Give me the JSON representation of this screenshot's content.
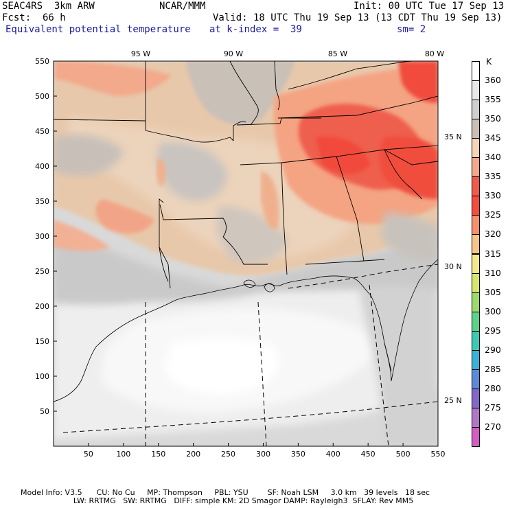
{
  "header": {
    "model": "SEAC4RS  3km ARW",
    "org": "NCAR/MMM",
    "init": "Init: 00 UTC Tue 17 Sep 13",
    "fcst": "Fcst:  66 h",
    "valid": "Valid: 18 UTC Thu 19 Sep 13 (13 CDT Thu 19 Sep 13)",
    "field": "Equivalent potential temperature",
    "level": "at k-index =  39",
    "smooth": "sm= 2"
  },
  "axes": {
    "x_ticks": [
      "50",
      "100",
      "150",
      "200",
      "250",
      "300",
      "350",
      "400",
      "450",
      "500",
      "550"
    ],
    "y_ticks": [
      "50",
      "100",
      "150",
      "200",
      "250",
      "300",
      "350",
      "400",
      "450",
      "500",
      "550"
    ],
    "lon_labels": [
      "95 W",
      "90 W",
      "85 W",
      "80 W"
    ],
    "lat_labels": [
      "35 N",
      "30 N",
      "25 N"
    ]
  },
  "colorbar": {
    "unit": "K",
    "levels": [
      "360",
      "355",
      "350",
      "345",
      "340",
      "335",
      "330",
      "325",
      "320",
      "315",
      "310",
      "305",
      "300",
      "295",
      "290",
      "285",
      "280",
      "275",
      "270"
    ],
    "colors": [
      "#ffffff",
      "#e8e8e8",
      "#cfcfcf",
      "#c8beb4",
      "#f5d3b4",
      "#f4a78a",
      "#f05a4a",
      "#f54c3c",
      "#f5906a",
      "#f7c48a",
      "#f3e88a",
      "#d4e66b",
      "#9ed96b",
      "#5cd18a",
      "#3ec9b4",
      "#3ab2d6",
      "#5c8ad6",
      "#8268c9",
      "#b276c9",
      "#d35cc5"
    ]
  },
  "footer": {
    "line1": "Model Info: V3.5      CU: No Cu     MP: Thompson     PBL: YSU        SF: Noah LSM     3.0 km   39 levels   18 sec",
    "line2": "                      LW: RRTMG   SW: RRTMG   DIFF: simple KM: 2D Smagor DAMP: Rayleigh3  SFLAY: Rev MM5"
  }
}
